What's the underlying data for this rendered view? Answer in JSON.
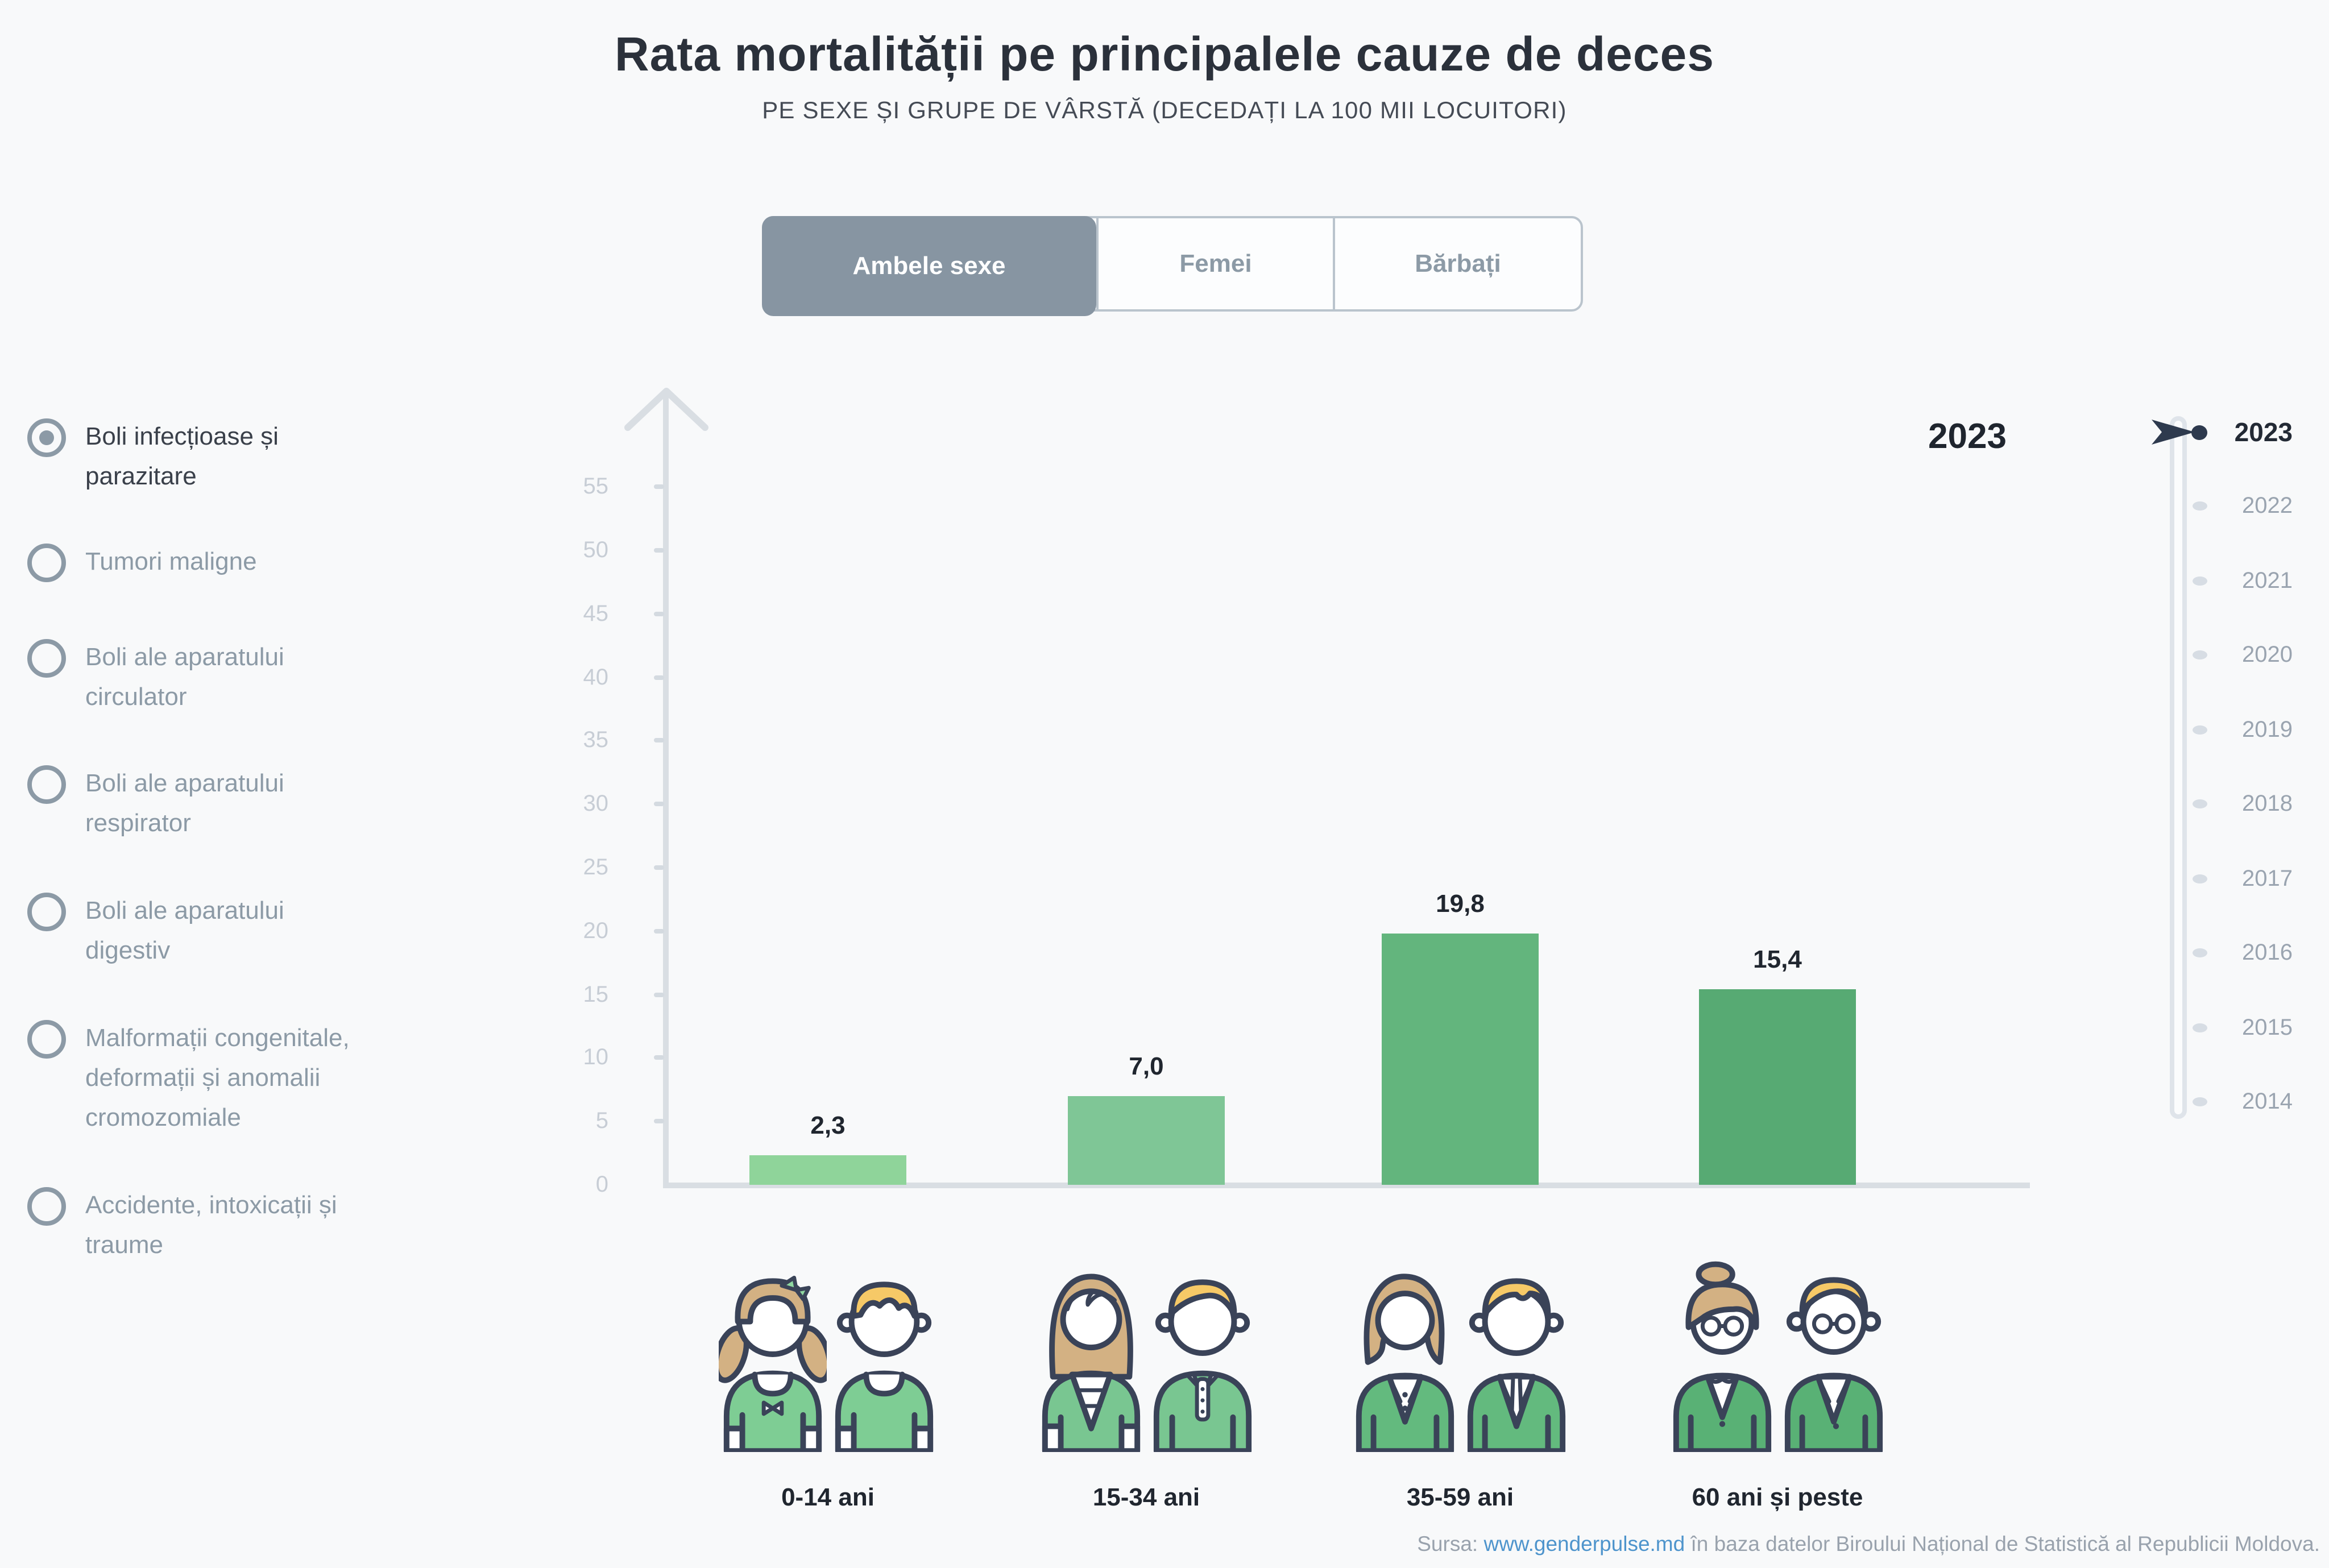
{
  "title": "Rata mortalității pe principalele cauze de deces",
  "subtitle": "PE SEXE ȘI GRUPE DE VÂRSTĂ (DECEDAȚI LA 100 MII LOCUITORI)",
  "tabs": {
    "items": [
      "Ambele sexe",
      "Femei",
      "Bărbați"
    ],
    "selected": "Ambele sexe"
  },
  "causes": {
    "items": [
      "Boli infecțioase și parazitare",
      "Tumori maligne",
      "Boli ale aparatului circulator",
      "Boli ale aparatului respirator",
      "Boli ale aparatului digestiv",
      "Malformații congenitale, deformații și anomalii cromozomiale",
      "Accidente, intoxicații și traume"
    ],
    "selected": "Boli infecțioase și parazitare"
  },
  "chart_data": {
    "type": "bar",
    "title": "Rata mortalității pe principalele cauze de deces",
    "subtitle": "Pe sexe și grupe de vârstă (decedați la 100 mii locuitori)",
    "cause_selected": "Boli infecțioase și parazitare",
    "sex_selected": "Ambele sexe",
    "year_selected": "2023",
    "categories": [
      "0-14 ani",
      "15-34 ani",
      "35-59 ani",
      "60 ani și peste"
    ],
    "values": [
      2.3,
      7.0,
      19.8,
      15.4
    ],
    "value_labels": [
      "2,3",
      "7,0",
      "19,8",
      "15,4"
    ],
    "xlabel": "",
    "ylabel": "",
    "ylim": [
      0,
      55
    ],
    "yticks": [
      0,
      5,
      10,
      15,
      20,
      25,
      30,
      35,
      40,
      45,
      50,
      55
    ],
    "grid": false,
    "legend": false,
    "bar_colors": [
      "#8FD49A",
      "#7FC696",
      "#63B57D",
      "#57AA73"
    ]
  },
  "timeline": {
    "years": [
      "2023",
      "2022",
      "2021",
      "2020",
      "2019",
      "2018",
      "2017",
      "2016",
      "2015",
      "2014"
    ],
    "selected": "2023"
  },
  "footer": {
    "prefix": "Sursa:",
    "link": "www.genderpulse.md",
    "suffix": "în baza datelor Biroului Național de Statistică al Republicii Moldova."
  },
  "colors": {
    "background": "#F8F9FA",
    "ink": "#2B313B",
    "muted": "#8C9AA6",
    "outline": "#3A4358",
    "axis": "#D9DEE3",
    "tick_label": "#C7CDD5",
    "accent_dark": "#2E3A4E",
    "link": "#4E94CC",
    "tab_selected_bg": "#8795A2",
    "tab_border": "#BAC4CD",
    "bar_colors": [
      "#8FD49A",
      "#7FC696",
      "#63B57D",
      "#57AA73"
    ],
    "age_group_greens": [
      "#7ECD94",
      "#79C691",
      "#63BA7E",
      "#59B175"
    ],
    "hair_female": "#D3B183",
    "hair_male": "#F6C967"
  }
}
